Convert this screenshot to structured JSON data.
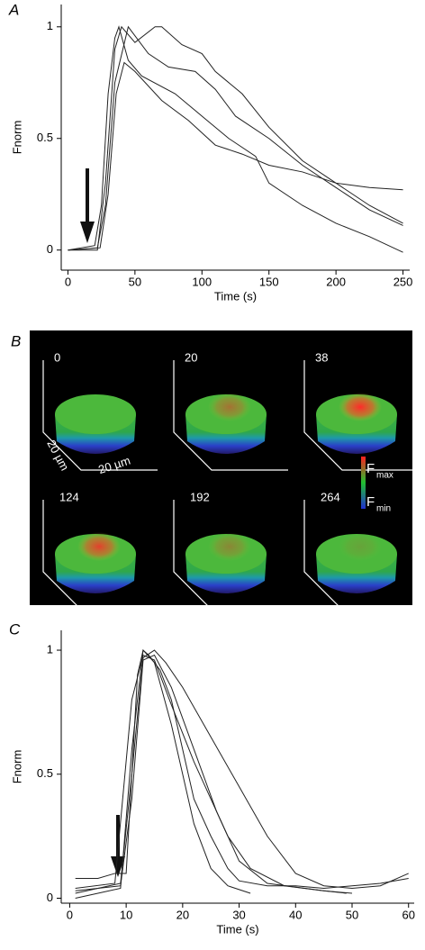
{
  "chart_data": [
    {
      "type": "line",
      "panel_label": "A",
      "xlabel": "Time (s)",
      "ylabel": "Fnorm",
      "xlim": [
        -5,
        255
      ],
      "ylim": [
        -0.09,
        1.1
      ],
      "xticks": [
        0,
        50,
        100,
        150,
        200,
        250
      ],
      "yticks": [
        0,
        0.5,
        1
      ],
      "series": [
        {
          "color": "#222",
          "x": [
            0,
            20,
            25,
            30,
            35,
            38,
            45,
            55,
            80,
            100,
            120,
            140,
            150,
            175,
            200,
            225,
            250
          ],
          "values": [
            0,
            0.02,
            0.2,
            0.7,
            0.95,
            1.0,
            0.85,
            0.78,
            0.7,
            0.6,
            0.5,
            0.42,
            0.3,
            0.2,
            0.12,
            0.06,
            -0.01
          ]
        },
        {
          "color": "#222",
          "x": [
            0,
            22,
            28,
            35,
            45,
            60,
            75,
            95,
            110,
            125,
            150,
            175,
            200,
            225,
            250
          ],
          "values": [
            0,
            0.01,
            0.2,
            0.75,
            1.0,
            0.88,
            0.82,
            0.8,
            0.72,
            0.6,
            0.5,
            0.38,
            0.28,
            0.18,
            0.11
          ]
        },
        {
          "color": "#222",
          "x": [
            0,
            22,
            28,
            35,
            40,
            50,
            65,
            70,
            85,
            100,
            110,
            130,
            150,
            175,
            200,
            225,
            250
          ],
          "values": [
            0,
            0.0,
            0.3,
            0.9,
            1.0,
            0.93,
            1.0,
            1.0,
            0.92,
            0.88,
            0.8,
            0.7,
            0.55,
            0.4,
            0.3,
            0.2,
            0.12
          ]
        },
        {
          "color": "#222",
          "x": [
            0,
            24,
            30,
            36,
            42,
            50,
            70,
            90,
            110,
            130,
            150,
            175,
            200,
            225,
            250
          ],
          "values": [
            0,
            0.01,
            0.25,
            0.7,
            0.84,
            0.8,
            0.67,
            0.58,
            0.47,
            0.43,
            0.38,
            0.35,
            0.3,
            0.28,
            0.27
          ]
        }
      ]
    },
    {
      "type": "line",
      "panel_label": "C",
      "xlabel": "Time (s)",
      "ylabel": "Fnorm",
      "xlim": [
        -1.5,
        61
      ],
      "ylim": [
        -0.02,
        1.08
      ],
      "xticks": [
        0,
        10,
        20,
        30,
        40,
        50,
        60
      ],
      "yticks": [
        0,
        0.5,
        1
      ],
      "series": [
        {
          "color": "#222",
          "x": [
            1,
            5,
            8,
            10,
            11,
            12,
            13,
            14,
            16,
            18,
            20,
            22,
            25,
            28,
            30,
            35,
            40,
            45,
            50,
            55,
            60
          ],
          "values": [
            0.08,
            0.08,
            0.1,
            0.1,
            0.5,
            0.9,
            1.0,
            0.98,
            0.92,
            0.8,
            0.6,
            0.4,
            0.25,
            0.12,
            0.07,
            0.05,
            0.05,
            0.04,
            0.05,
            0.06,
            0.08
          ]
        },
        {
          "color": "#222",
          "x": [
            1,
            5,
            9,
            11,
            13,
            15,
            17,
            20,
            25,
            30,
            35,
            40,
            45,
            50,
            55,
            60
          ],
          "values": [
            0.02,
            0.04,
            0.06,
            0.5,
            0.97,
            1.0,
            0.95,
            0.85,
            0.65,
            0.45,
            0.25,
            0.1,
            0.05,
            0.04,
            0.05,
            0.1
          ]
        },
        {
          "color": "#222",
          "x": [
            1,
            5,
            9,
            11,
            13,
            15,
            18,
            20,
            22,
            25,
            28,
            32
          ],
          "values": [
            0.0,
            0.02,
            0.04,
            0.6,
            1.0,
            0.95,
            0.7,
            0.5,
            0.3,
            0.12,
            0.05,
            0.02
          ]
        },
        {
          "color": "#222",
          "x": [
            1,
            8,
            11,
            13,
            15,
            18,
            22,
            25,
            28,
            32,
            38,
            45,
            50
          ],
          "values": [
            0.04,
            0.06,
            0.8,
            0.98,
            0.96,
            0.78,
            0.55,
            0.4,
            0.25,
            0.12,
            0.05,
            0.03,
            0.02
          ]
        },
        {
          "color": "#222",
          "x": [
            1,
            9,
            11,
            13,
            15,
            18,
            22,
            26,
            30,
            35,
            45,
            49
          ],
          "values": [
            0.03,
            0.05,
            0.4,
            0.96,
            0.98,
            0.85,
            0.6,
            0.35,
            0.15,
            0.06,
            0.03,
            0.02
          ]
        }
      ]
    }
  ],
  "image_panel": {
    "panel_label": "B",
    "frames": [
      {
        "label": "0"
      },
      {
        "label": "20"
      },
      {
        "label": "38"
      },
      {
        "label": "124"
      },
      {
        "label": "192"
      },
      {
        "label": "264"
      }
    ],
    "scale_y": "20 µm",
    "scale_x": "20 µm",
    "colorbar": {
      "max": "F",
      "max_sub": "max",
      "min": "F",
      "min_sub": "min"
    }
  }
}
